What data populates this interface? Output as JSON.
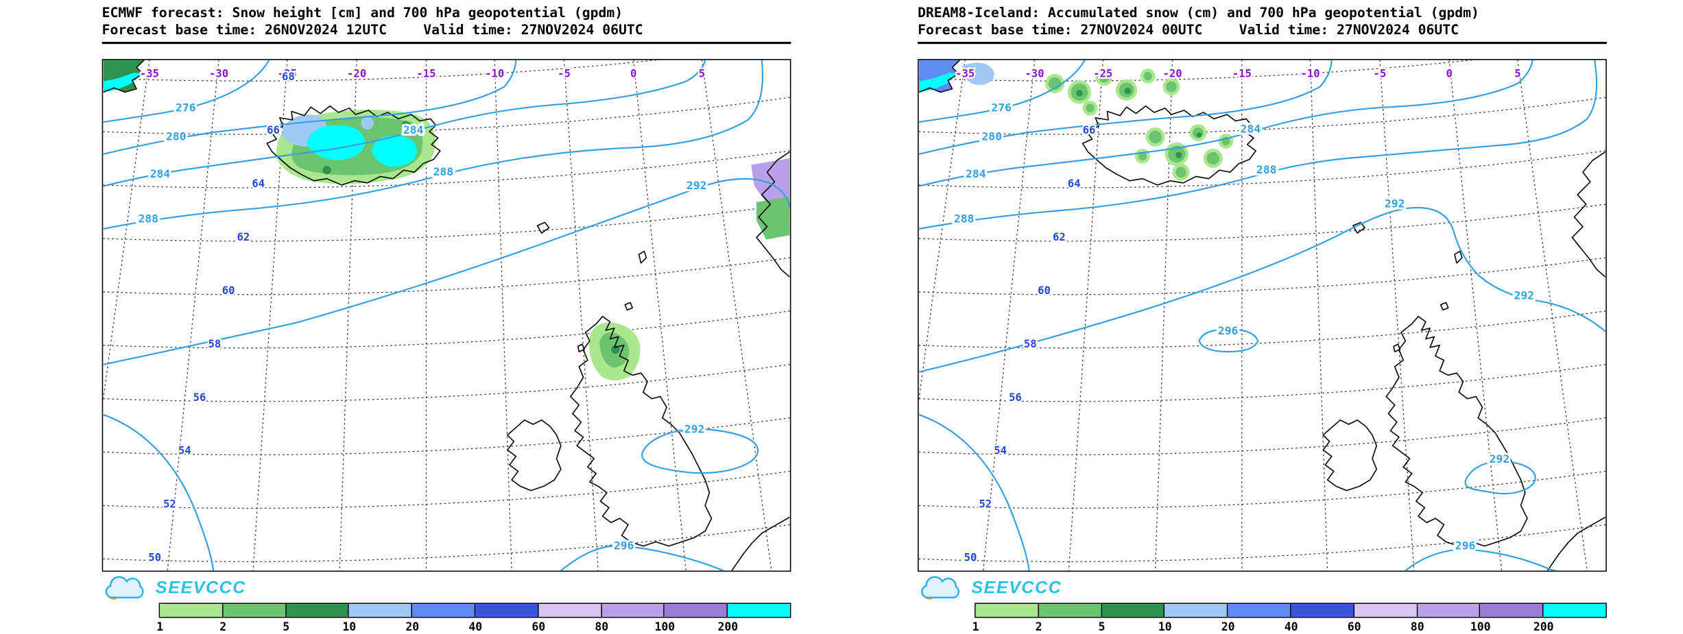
{
  "panels": [
    {
      "title": "ECMWF forecast: Snow height [cm] and 700 hPa geopotential (gpdm)",
      "base_time": "Forecast base time: 26NOV2024 12UTC",
      "valid_time": "Valid time: 27NOV2024 06UTC",
      "lon_labels": [
        "-35",
        "-30",
        "-25",
        "-20",
        "-15",
        "-10",
        "-5",
        "0",
        "5"
      ],
      "lat_labels": [
        "68",
        "66",
        "64",
        "62",
        "60",
        "58",
        "56",
        "54",
        "52",
        "50"
      ],
      "geopotential_labels": [
        "276",
        "280",
        "284",
        "288",
        "284",
        "288",
        "292",
        "292",
        "296"
      ]
    },
    {
      "title": "DREAM8-Iceland: Accumulated snow (cm) and 700 hPa geopotential (gpdm)",
      "base_time": "Forecast base time: 27NOV2024 00UTC",
      "valid_time": "Valid time: 27NOV2024 06UTC",
      "lon_labels": [
        "-35",
        "-30",
        "-25",
        "-20",
        "-15",
        "-10",
        "-5",
        "0",
        "5"
      ],
      "lat_labels": [
        "66",
        "64",
        "62",
        "60",
        "58",
        "56",
        "54",
        "52",
        "50"
      ],
      "geopotential_labels": [
        "276",
        "280",
        "284",
        "288",
        "284",
        "288",
        "292",
        "296",
        "292",
        "292",
        "296"
      ]
    }
  ],
  "logo": {
    "text": "SEEVCCC"
  },
  "colorbar": {
    "labels": [
      "1",
      "2",
      "5",
      "10",
      "20",
      "40",
      "60",
      "80",
      "100",
      "200"
    ],
    "colors": [
      "#aae78e",
      "#6cc46f",
      "#2f9350",
      "#9fc9f6",
      "#5f8cf0",
      "#3a55d6",
      "#d9c4f4",
      "#b9a0e8",
      "#9a7cd8",
      "#00ffff"
    ]
  },
  "colors": {
    "contour": "#35a0e0",
    "lon_label": "#8a14cc",
    "lat_label": "#2746d6",
    "logo_text": "#29c0ee"
  }
}
